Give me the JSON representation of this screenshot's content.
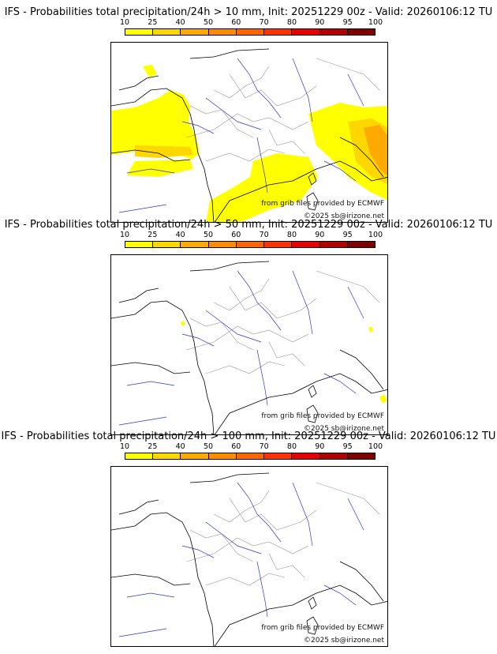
{
  "legend": {
    "ticks": [
      "10",
      "25",
      "40",
      "50",
      "60",
      "70",
      "80",
      "90",
      "95",
      "100"
    ],
    "colors": [
      "#ffff00",
      "#ffd700",
      "#ffaa00",
      "#ff8c00",
      "#ff6600",
      "#ff3300",
      "#e60000",
      "#b30000",
      "#800000"
    ]
  },
  "credits": {
    "source": "from grib files provided by ECMWF",
    "copyright": "©2025 sb@irizone.net"
  },
  "panels": [
    {
      "title": "IFS - Probabilities total precipitation/24h > 10 mm, Init: 20251229 00z - Valid: 20260106:12 TU"
    },
    {
      "title": "IFS - Probabilities total precipitation/24h > 50 mm, Init: 20251229 00z - Valid: 20260106:12 TU"
    },
    {
      "title": "IFS - Probabilities total precipitation/24h > 100 mm, Init: 20251229 00z - Valid: 20260106:12 TU"
    }
  ],
  "map_colors": {
    "coast": "#000000",
    "rivers": "#3333cc",
    "borders": "#999999",
    "precip_low": "#ffff00",
    "precip_mid": "#ffd700",
    "precip_high": "#ffaa00"
  }
}
